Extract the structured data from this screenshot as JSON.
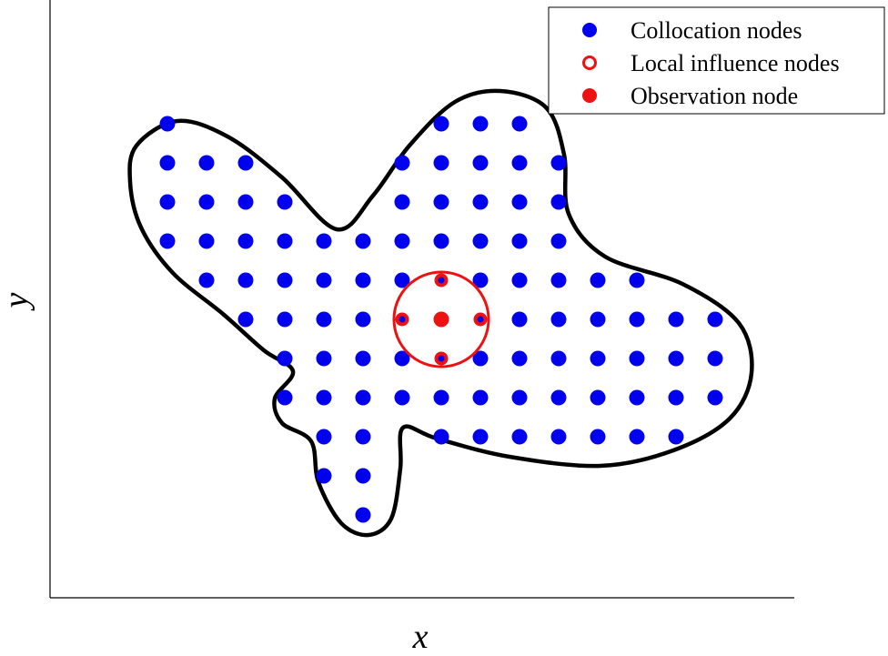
{
  "axes": {
    "x_label": "x",
    "y_label": "y"
  },
  "legend": {
    "items": [
      "Collocation nodes",
      "Local influence nodes",
      "Observation node"
    ]
  }
}
